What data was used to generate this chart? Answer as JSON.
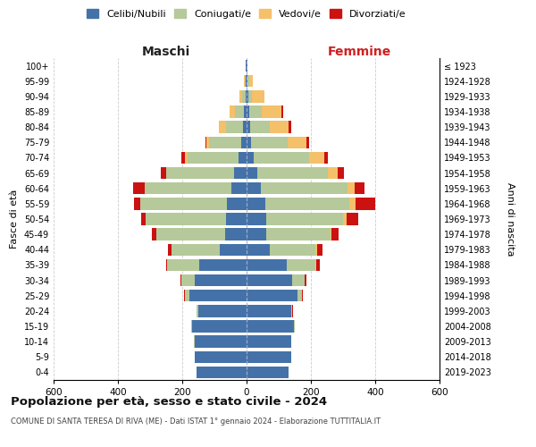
{
  "age_groups": [
    "0-4",
    "5-9",
    "10-14",
    "15-19",
    "20-24",
    "25-29",
    "30-34",
    "35-39",
    "40-44",
    "45-49",
    "50-54",
    "55-59",
    "60-64",
    "65-69",
    "70-74",
    "75-79",
    "80-84",
    "85-89",
    "90-94",
    "95-99",
    "100+"
  ],
  "birth_years": [
    "2019-2023",
    "2014-2018",
    "2009-2013",
    "2004-2008",
    "1999-2003",
    "1994-1998",
    "1989-1993",
    "1984-1988",
    "1979-1983",
    "1974-1978",
    "1969-1973",
    "1964-1968",
    "1959-1963",
    "1954-1958",
    "1949-1953",
    "1944-1948",
    "1939-1943",
    "1934-1938",
    "1929-1933",
    "1924-1928",
    "≤ 1923"
  ],
  "maschi": {
    "celibi": [
      155,
      162,
      162,
      170,
      150,
      178,
      162,
      148,
      82,
      68,
      65,
      62,
      48,
      38,
      25,
      18,
      12,
      7,
      4,
      2,
      2
    ],
    "coniugati": [
      0,
      0,
      1,
      2,
      5,
      15,
      42,
      98,
      152,
      212,
      248,
      268,
      268,
      212,
      158,
      98,
      52,
      28,
      10,
      3,
      0
    ],
    "vedovi": [
      0,
      0,
      0,
      0,
      0,
      0,
      0,
      0,
      0,
      0,
      0,
      0,
      0,
      0,
      8,
      8,
      22,
      18,
      8,
      2,
      0
    ],
    "divorziati": [
      0,
      0,
      0,
      0,
      0,
      2,
      2,
      5,
      10,
      15,
      15,
      20,
      38,
      18,
      12,
      5,
      0,
      0,
      0,
      0,
      0
    ]
  },
  "femmine": {
    "nubili": [
      130,
      138,
      138,
      148,
      138,
      158,
      142,
      125,
      72,
      62,
      62,
      58,
      45,
      32,
      22,
      15,
      10,
      8,
      5,
      3,
      2
    ],
    "coniugate": [
      0,
      0,
      1,
      2,
      5,
      15,
      38,
      88,
      142,
      198,
      238,
      262,
      268,
      222,
      172,
      112,
      62,
      38,
      12,
      4,
      0
    ],
    "vedove": [
      0,
      0,
      0,
      0,
      0,
      0,
      0,
      5,
      5,
      5,
      10,
      18,
      22,
      28,
      48,
      58,
      58,
      62,
      38,
      12,
      2
    ],
    "divorziate": [
      0,
      0,
      0,
      0,
      2,
      2,
      5,
      10,
      18,
      20,
      38,
      62,
      32,
      22,
      12,
      10,
      8,
      5,
      0,
      0,
      0
    ]
  },
  "colors": {
    "celibi": "#4472a8",
    "coniugati": "#b5c99a",
    "vedovi": "#f5c06a",
    "divorziati": "#cc1111"
  },
  "title": "Popolazione per età, sesso e stato civile - 2024",
  "subtitle": "COMUNE DI SANTA TERESA DI RIVA (ME) - Dati ISTAT 1° gennaio 2024 - Elaborazione TUTTITALIA.IT",
  "xlabel_left": "Maschi",
  "xlabel_right": "Femmine",
  "ylabel_left": "Fasce di età",
  "ylabel_right": "Anni di nascita",
  "xlim": 600,
  "bg_color": "#ffffff",
  "grid_color": "#cccccc",
  "legend_labels": [
    "Celibi/Nubili",
    "Coniugati/e",
    "Vedovi/e",
    "Divorziati/e"
  ]
}
